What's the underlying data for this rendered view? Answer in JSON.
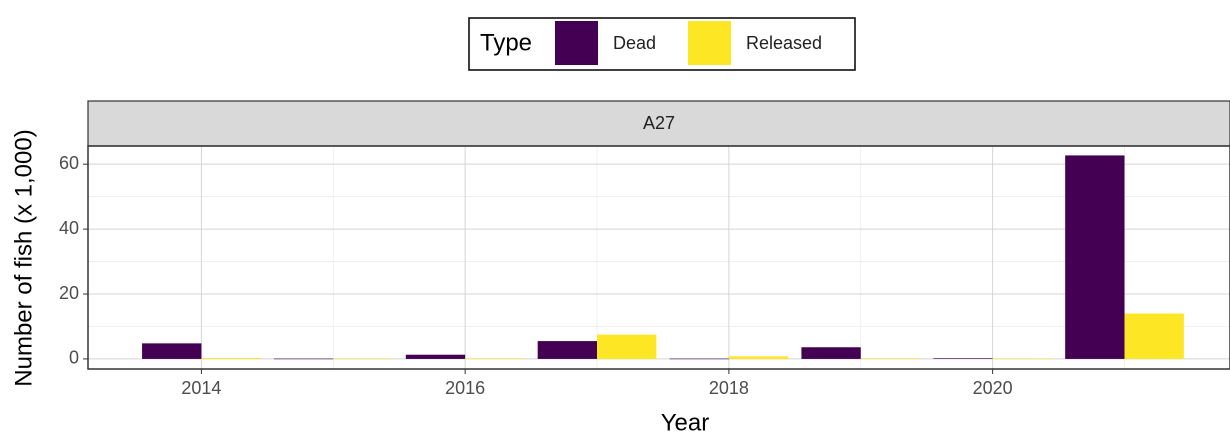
{
  "chart_data": {
    "type": "bar",
    "legend_title": "Type",
    "facet": "A27",
    "x_label": "Year",
    "y_label": "Number of fish (x 1,000)",
    "x": [
      2014,
      2015,
      2016,
      2017,
      2018,
      2019,
      2020,
      2021
    ],
    "series": [
      {
        "name": "Dead",
        "color": "#440154",
        "values": [
          4.8,
          0.1,
          1.3,
          5.5,
          0.1,
          3.6,
          0.2,
          62.7
        ]
      },
      {
        "name": "Released",
        "color": "#fde725",
        "values": [
          0.3,
          0.05,
          0.2,
          7.5,
          0.8,
          0.2,
          0.1,
          14.0
        ]
      }
    ],
    "xlim": [
      2013.14,
      2021.8
    ],
    "xticks": [
      2014,
      2016,
      2018,
      2020
    ],
    "xticks_minor": [
      2015,
      2017,
      2019,
      2021
    ],
    "ylim": [
      -3.1,
      65.6
    ],
    "yticks": [
      0,
      20,
      40,
      60
    ],
    "yticks_minor": [
      10,
      30,
      50
    ],
    "grid": true
  }
}
